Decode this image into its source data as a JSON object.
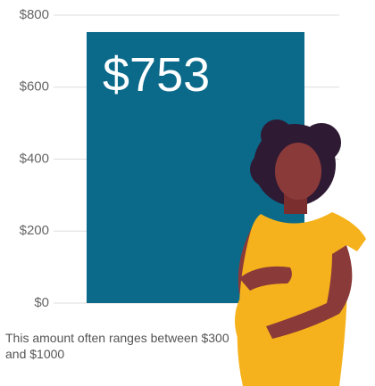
{
  "chart_data": {
    "type": "bar",
    "categories": [
      null
    ],
    "values": [
      753
    ],
    "value_labels": [
      "$753"
    ],
    "color": "#0b6a8a",
    "ylim": [
      0,
      800
    ],
    "yticks": [
      {
        "value": 0,
        "label": "$0"
      },
      {
        "value": 200,
        "label": "$200"
      },
      {
        "value": 400,
        "label": "$400"
      },
      {
        "value": 600,
        "label": "$600"
      },
      {
        "value": 800,
        "label": "$800"
      }
    ],
    "grid": true,
    "annotation": "This amount often ranges between $300 and $1000"
  }
}
